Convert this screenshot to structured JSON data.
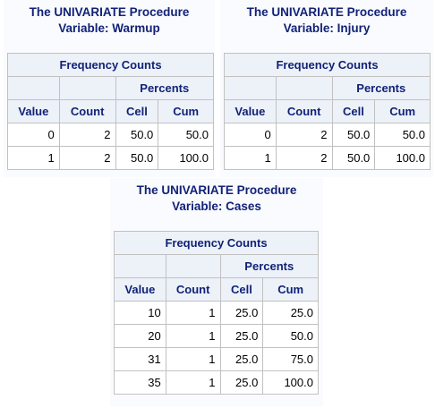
{
  "panels": [
    {
      "title_line1": "The UNIVARIATE Procedure",
      "title_line2": "Variable: Warmup",
      "table_title": "Frequency Counts",
      "percents_label": "Percents",
      "headers": [
        "Value",
        "Count",
        "Cell",
        "Cum"
      ],
      "rows": [
        [
          "0",
          "2",
          "50.0",
          "50.0"
        ],
        [
          "1",
          "2",
          "50.0",
          "100.0"
        ]
      ]
    },
    {
      "title_line1": "The UNIVARIATE Procedure",
      "title_line2": "Variable: Injury",
      "table_title": "Frequency Counts",
      "percents_label": "Percents",
      "headers": [
        "Value",
        "Count",
        "Cell",
        "Cum"
      ],
      "rows": [
        [
          "0",
          "2",
          "50.0",
          "50.0"
        ],
        [
          "1",
          "2",
          "50.0",
          "100.0"
        ]
      ]
    },
    {
      "title_line1": "The UNIVARIATE Procedure",
      "title_line2": "Variable: Cases",
      "table_title": "Frequency Counts",
      "percents_label": "Percents",
      "headers": [
        "Value",
        "Count",
        "Cell",
        "Cum"
      ],
      "rows": [
        [
          "10",
          "1",
          "25.0",
          "25.0"
        ],
        [
          "20",
          "1",
          "25.0",
          "50.0"
        ],
        [
          "31",
          "1",
          "25.0",
          "75.0"
        ],
        [
          "35",
          "1",
          "25.0",
          "100.0"
        ]
      ]
    }
  ]
}
